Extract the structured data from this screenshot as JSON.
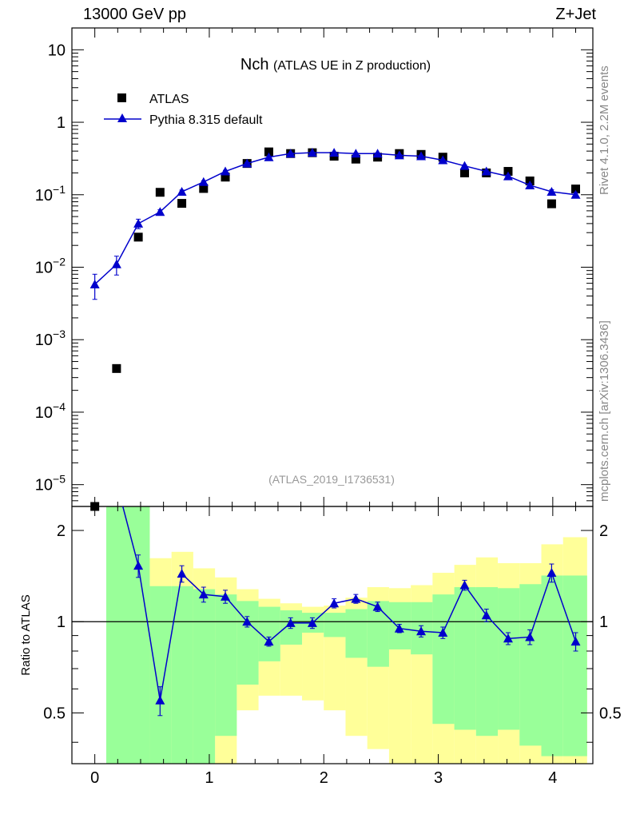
{
  "header": {
    "left": "13000 GeV pp",
    "right": "Z+Jet"
  },
  "side_labels": {
    "rivet": "Rivet 4.1.0,  2.2M events",
    "mcplots": "mcplots.cern.ch [arXiv:1306.3436]"
  },
  "chart_data": [
    {
      "type": "scatter",
      "title": "Nch",
      "subtitle": "(ATLAS UE in Z production)",
      "analysis_id": "(ATLAS_2019_I1736531)",
      "yscale": "log",
      "ylim": [
        5e-06,
        20
      ],
      "xlim": [
        -0.2,
        4.35
      ],
      "x_tick_labels": [
        "0",
        "1",
        "2",
        "3",
        "4"
      ],
      "y_tick_labels": [
        {
          "base": "10",
          "exp": "",
          "value": 10
        },
        {
          "base": "1",
          "exp": "",
          "value": 1
        },
        {
          "base": "10",
          "exp": "−1",
          "value": 0.1
        },
        {
          "base": "10",
          "exp": "−2",
          "value": 0.01
        },
        {
          "base": "10",
          "exp": "−3",
          "value": 0.001
        },
        {
          "base": "10",
          "exp": "−4",
          "value": 0.0001
        },
        {
          "base": "10",
          "exp": "−5",
          "value": 1e-05
        }
      ],
      "legend": [
        "ATLAS",
        "Pythia 8.315 default"
      ],
      "legend_position": "top-left",
      "series": [
        {
          "name": "ATLAS",
          "marker": "square",
          "color": "#000000",
          "x": [
            0.0,
            0.19,
            0.38,
            0.57,
            0.76,
            0.95,
            1.14,
            1.33,
            1.52,
            1.71,
            1.9,
            2.09,
            2.28,
            2.47,
            2.66,
            2.85,
            3.04,
            3.23,
            3.42,
            3.61,
            3.8,
            3.99,
            4.2
          ],
          "values": [
            4.5e-06,
            0.0004,
            0.026,
            0.108,
            0.076,
            0.122,
            0.175,
            0.27,
            0.39,
            0.37,
            0.38,
            0.34,
            0.31,
            0.33,
            0.37,
            0.36,
            0.33,
            0.2,
            0.2,
            0.21,
            0.155,
            0.075,
            0.12
          ]
        },
        {
          "name": "Pythia 8.315 default",
          "marker": "triangle",
          "color": "#0000cc",
          "x": [
            0.0,
            0.19,
            0.38,
            0.57,
            0.76,
            0.95,
            1.14,
            1.33,
            1.52,
            1.71,
            1.9,
            2.09,
            2.28,
            2.47,
            2.66,
            2.85,
            3.04,
            3.23,
            3.42,
            3.61,
            3.8,
            3.99,
            4.2
          ],
          "values": [
            0.0058,
            0.011,
            0.04,
            0.058,
            0.11,
            0.15,
            0.21,
            0.27,
            0.33,
            0.37,
            0.38,
            0.38,
            0.37,
            0.37,
            0.35,
            0.34,
            0.3,
            0.25,
            0.21,
            0.18,
            0.135,
            0.11,
            0.1
          ],
          "err_low": [
            0.0022,
            0.0032,
            0.006,
            0.004,
            0.006,
            0.006,
            0.007,
            0.008,
            0.008,
            0.008,
            0.008,
            0.008,
            0.008,
            0.008,
            0.008,
            0.008,
            0.008,
            0.008,
            0.008,
            0.007,
            0.007,
            0.007,
            0.007
          ],
          "err_high": [
            0.0022,
            0.0032,
            0.006,
            0.004,
            0.006,
            0.006,
            0.007,
            0.008,
            0.008,
            0.008,
            0.008,
            0.008,
            0.008,
            0.008,
            0.008,
            0.008,
            0.008,
            0.008,
            0.008,
            0.007,
            0.007,
            0.007,
            0.007
          ]
        }
      ]
    },
    {
      "type": "line",
      "ylabel": "Ratio to ATLAS",
      "yscale": "log",
      "ylim": [
        0.34,
        2.4
      ],
      "xlim": [
        -0.2,
        4.35
      ],
      "x_tick_labels": [
        "0",
        "1",
        "2",
        "3",
        "4"
      ],
      "y_tick_labels": [
        {
          "label": "2",
          "value": 2
        },
        {
          "label": "1",
          "value": 1
        },
        {
          "label": "0.5",
          "value": 0.5
        }
      ],
      "reference_line": 1,
      "bands": {
        "bin_edges": [
          0.1,
          0.48,
          0.67,
          0.86,
          1.05,
          1.24,
          1.43,
          1.62,
          1.81,
          2.0,
          2.19,
          2.38,
          2.57,
          2.76,
          2.95,
          3.14,
          3.33,
          3.52,
          3.71,
          3.9,
          4.09,
          4.3
        ],
        "inner_low": [
          0.34,
          0.34,
          0.34,
          0.34,
          0.42,
          0.62,
          0.74,
          0.84,
          0.92,
          0.89,
          0.76,
          0.71,
          0.81,
          0.78,
          0.46,
          0.44,
          0.42,
          0.44,
          0.39,
          0.36,
          0.36
        ],
        "inner_high": [
          2.4,
          1.31,
          1.31,
          1.28,
          1.23,
          1.17,
          1.12,
          1.09,
          1.07,
          1.07,
          1.1,
          1.17,
          1.16,
          1.16,
          1.23,
          1.3,
          1.3,
          1.29,
          1.33,
          1.42,
          1.42
        ],
        "outer_low": [
          0.34,
          0.34,
          0.34,
          0.34,
          0.34,
          0.51,
          0.57,
          0.57,
          0.55,
          0.51,
          0.42,
          0.38,
          0.34,
          0.34,
          0.34,
          0.34,
          0.34,
          0.34,
          0.34,
          0.34,
          0.34
        ],
        "outer_high": [
          2.4,
          1.62,
          1.7,
          1.5,
          1.4,
          1.28,
          1.19,
          1.15,
          1.12,
          1.13,
          1.2,
          1.3,
          1.29,
          1.32,
          1.45,
          1.54,
          1.63,
          1.56,
          1.56,
          1.8,
          1.9
        ],
        "inner_color": "#99ff99",
        "outer_color": "#ffff99"
      },
      "series": [
        {
          "name": "Pythia 8.315 default",
          "color": "#0000cc",
          "x": [
            0.0,
            0.19,
            0.38,
            0.57,
            0.76,
            0.95,
            1.14,
            1.33,
            1.52,
            1.71,
            1.9,
            2.09,
            2.28,
            2.47,
            2.66,
            2.85,
            3.04,
            3.23,
            3.42,
            3.61,
            3.8,
            3.99,
            4.2
          ],
          "values": [
            null,
            null,
            1.53,
            0.55,
            1.44,
            1.23,
            1.21,
            1.0,
            0.86,
            0.99,
            0.99,
            1.15,
            1.19,
            1.12,
            0.95,
            0.93,
            0.92,
            1.32,
            1.05,
            0.88,
            0.89,
            1.45,
            0.86
          ],
          "err_low": [
            null,
            null,
            0.13,
            0.06,
            0.09,
            0.07,
            0.06,
            0.04,
            0.03,
            0.04,
            0.04,
            0.04,
            0.04,
            0.04,
            0.03,
            0.04,
            0.04,
            0.05,
            0.05,
            0.04,
            0.05,
            0.1,
            0.06
          ],
          "err_high": [
            null,
            null,
            0.13,
            0.06,
            0.09,
            0.07,
            0.06,
            0.04,
            0.03,
            0.04,
            0.04,
            0.04,
            0.04,
            0.04,
            0.03,
            0.04,
            0.04,
            0.05,
            0.05,
            0.04,
            0.05,
            0.1,
            0.06
          ]
        }
      ]
    }
  ]
}
